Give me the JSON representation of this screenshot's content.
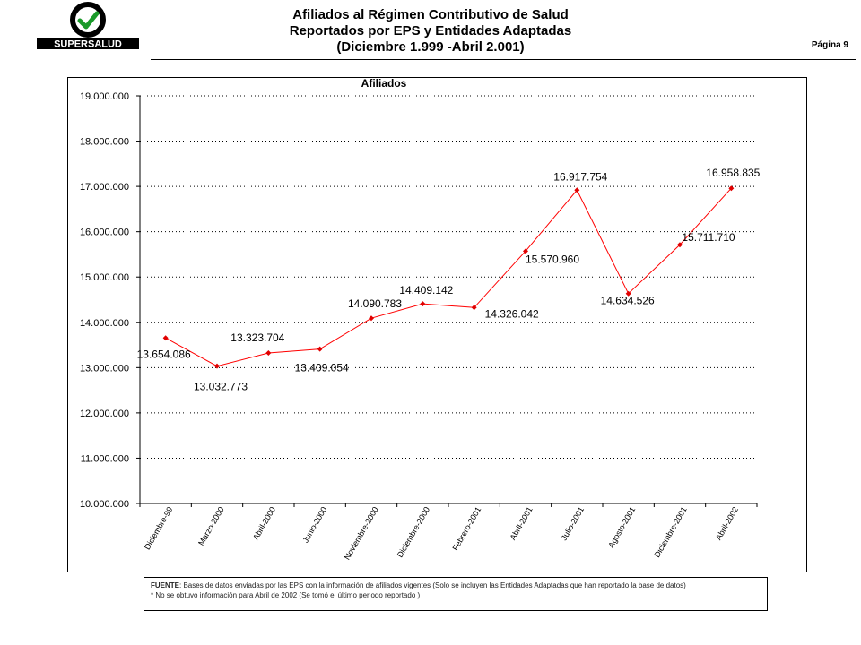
{
  "header": {
    "logo_text": "SUPERSALUD",
    "title_line1": "Afiliados al Régimen Contributivo de Salud",
    "title_line2": "Reportados por EPS y Entidades Adaptadas",
    "title_line3": "(Diciembre 1.999 -Abril 2.001)",
    "page_label": "Página 9"
  },
  "colors": {
    "series": "#ff0000",
    "marker": "#e00000",
    "grid": "#000000"
  },
  "chart_data": {
    "type": "line",
    "title": "Afiliados",
    "xlabel": "",
    "ylabel": "",
    "ylim": [
      10000000,
      19000000
    ],
    "yticks": [
      "10.000.000",
      "11.000.000",
      "12.000.000",
      "13.000.000",
      "14.000.000",
      "15.000.000",
      "16.000.000",
      "17.000.000",
      "18.000.000",
      "19.000.000"
    ],
    "grid": true,
    "grid_style": "dotted horizontal",
    "categories": [
      "Diciembre-99",
      "Marzo-2000",
      "Abril-2000",
      "Junio-2000",
      "Noviembre-2000",
      "Diciembre-2000",
      "Febrero-2001",
      "Abril-2001",
      "Julio-2001",
      "Agosto-2001",
      "Diciembre-2001",
      "Abril-2002"
    ],
    "series": [
      {
        "values": [
          13654086,
          13032773,
          13323704,
          13409054,
          14090783,
          14409142,
          14326042,
          15570960,
          16917754,
          14634526,
          15711710,
          16958835
        ],
        "labels": [
          "13.654.086",
          "13.032.773",
          "13.323.704",
          "13.409.054",
          "14.090.783",
          "14.409.142",
          "14.326.042",
          "15.570.960",
          "16.917.754",
          "14.634.526",
          "15.711.710",
          "16.958.835"
        ]
      }
    ]
  },
  "footnote": {
    "source_label": "FUENTE",
    "source_text": ": Bases de datos enviadas por las EPS con la información de afiliados vigentes  (Solo se incluyen las Entidades Adaptadas que han reportado la base de datos)",
    "note_text": "* No se obtuvo información  para Abril de 2002  (Se tomó el último periodo reportado )"
  }
}
